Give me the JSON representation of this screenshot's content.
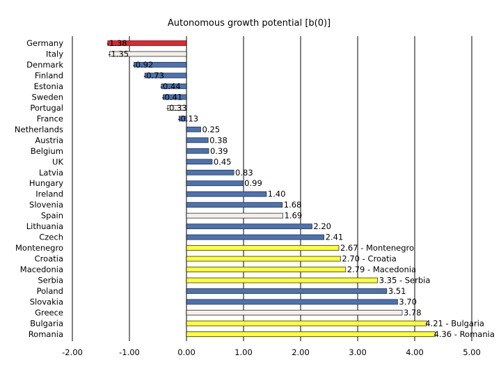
{
  "chart_data": {
    "type": "bar",
    "orientation": "horizontal",
    "title": "Autonomous growth potential [b(0)]",
    "xlabel": "",
    "ylabel": "",
    "xlim": [
      -2.0,
      5.0
    ],
    "xticks": [
      "-2.00",
      "-1.00",
      "0.00",
      "1.00",
      "2.00",
      "3.00",
      "4.00",
      "5.00"
    ],
    "grid": "vertical",
    "legend": "none",
    "categories": [
      "Germany",
      "Italy",
      "Denmark",
      "Finland",
      "Estonia",
      "Sweden",
      "Portugal",
      "France",
      "Netherlands",
      "Austria",
      "Belgium",
      "UK",
      "Latvia",
      "Hungary",
      "Ireland",
      "Slovenia",
      "Spain",
      "Lithuania",
      "Czech",
      "Montenegro",
      "Croatia",
      "Macedonia",
      "Serbia",
      "Poland",
      "Slovakia",
      "Greece",
      "Bulgaria",
      "Romania"
    ],
    "values": [
      -1.38,
      -1.35,
      -0.92,
      -0.73,
      -0.44,
      -0.41,
      -0.33,
      -0.13,
      0.25,
      0.38,
      0.39,
      0.45,
      0.83,
      0.99,
      1.4,
      1.68,
      1.69,
      2.2,
      2.41,
      2.67,
      2.7,
      2.79,
      3.35,
      3.51,
      3.7,
      3.78,
      4.21,
      4.36
    ],
    "labels": [
      "-1.38",
      "-1.35",
      "-0.92",
      "-0.73",
      "-0.44",
      "-0.41",
      "-0.33",
      "-0.13",
      "0.25",
      "0.38",
      "0.39",
      "0.45",
      "0.83",
      "0.99",
      "1.40",
      "1.68",
      "1.69",
      "2.20",
      "2.41",
      "2.67 - Montenegro",
      "2.70 - Croatia",
      "2.79 - Macedonia",
      "3.35 - Serbia",
      "3.51",
      "3.70",
      "3.78",
      "4.21 - Bulgaria",
      "4.36 - Romania"
    ],
    "bar_colors": [
      "#e8232a",
      "#f2f0e8",
      "#4a73b5",
      "#4a73b5",
      "#4a73b5",
      "#4a73b5",
      "#f2f0e8",
      "#4a73b5",
      "#4a73b5",
      "#4a73b5",
      "#4a73b5",
      "#4a73b5",
      "#4a73b5",
      "#4a73b5",
      "#4a73b5",
      "#4a73b5",
      "#f2f0e8",
      "#4a73b5",
      "#4a73b5",
      "#ffff33",
      "#ffff33",
      "#ffff33",
      "#ffff33",
      "#4a73b5",
      "#4a73b5",
      "#f2f0e8",
      "#ffff33",
      "#ffff33"
    ]
  }
}
